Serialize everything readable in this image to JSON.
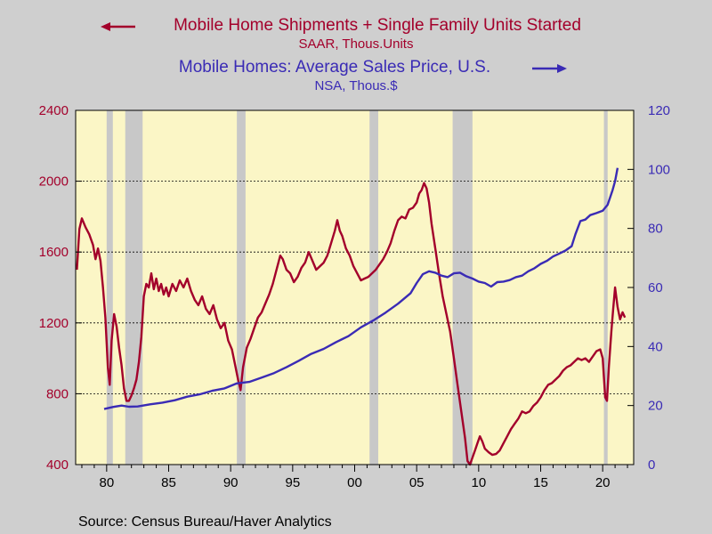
{
  "source": "Source:  Census Bureau/Haver Analytics",
  "chart_data": {
    "type": "line",
    "legend": [
      {
        "label": "Mobile Home Shipments + Single Family Units Started",
        "units": "SAAR, Thous.Units",
        "axis": "left",
        "color": "#a3002b",
        "arrow": "left"
      },
      {
        "label": "Mobile Homes: Average Sales Price, U.S.",
        "units": "NSA, Thous.$",
        "axis": "right",
        "color": "#3a2bb5",
        "arrow": "right"
      }
    ],
    "x_range": [
      1977.5,
      2022.5
    ],
    "x_ticks": [
      1980,
      1985,
      1990,
      1995,
      2000,
      2005,
      2010,
      2015,
      2020
    ],
    "x_tick_labels": [
      "80",
      "85",
      "90",
      "95",
      "00",
      "05",
      "10",
      "15",
      "20"
    ],
    "y_left": {
      "min": 400,
      "max": 2400,
      "ticks": [
        400,
        800,
        1200,
        1600,
        2000,
        2400
      ],
      "color": "#a3002b"
    },
    "y_right": {
      "min": 0,
      "max": 120,
      "ticks": [
        0,
        20,
        40,
        60,
        80,
        100,
        120
      ],
      "color": "#3a2bb5"
    },
    "dashed_gridlines_left": [
      800,
      1200,
      1600,
      2000
    ],
    "recessions": [
      [
        1980.0,
        1980.5
      ],
      [
        1981.5,
        1982.9
      ],
      [
        1990.5,
        1991.2
      ],
      [
        2001.2,
        2001.9
      ],
      [
        2007.9,
        2009.5
      ],
      [
        2020.1,
        2020.4
      ]
    ],
    "series": [
      {
        "name": "Mobile Home Shipments + Single Family Units Started",
        "axis": "left",
        "color": "#a3002b",
        "points": [
          [
            1977.6,
            1500
          ],
          [
            1977.8,
            1730
          ],
          [
            1978.0,
            1790
          ],
          [
            1978.3,
            1740
          ],
          [
            1978.6,
            1700
          ],
          [
            1978.9,
            1640
          ],
          [
            1979.1,
            1560
          ],
          [
            1979.3,
            1620
          ],
          [
            1979.5,
            1550
          ],
          [
            1979.7,
            1400
          ],
          [
            1979.9,
            1230
          ],
          [
            1980.1,
            950
          ],
          [
            1980.25,
            850
          ],
          [
            1980.4,
            1100
          ],
          [
            1980.6,
            1250
          ],
          [
            1980.8,
            1180
          ],
          [
            1981.0,
            1060
          ],
          [
            1981.2,
            960
          ],
          [
            1981.4,
            830
          ],
          [
            1981.6,
            760
          ],
          [
            1981.8,
            760
          ],
          [
            1982.0,
            790
          ],
          [
            1982.2,
            830
          ],
          [
            1982.4,
            880
          ],
          [
            1982.6,
            980
          ],
          [
            1982.8,
            1120
          ],
          [
            1983.0,
            1350
          ],
          [
            1983.2,
            1420
          ],
          [
            1983.4,
            1400
          ],
          [
            1983.6,
            1480
          ],
          [
            1983.8,
            1390
          ],
          [
            1984.0,
            1450
          ],
          [
            1984.2,
            1380
          ],
          [
            1984.4,
            1420
          ],
          [
            1984.6,
            1360
          ],
          [
            1984.8,
            1400
          ],
          [
            1985.0,
            1350
          ],
          [
            1985.3,
            1420
          ],
          [
            1985.6,
            1380
          ],
          [
            1985.9,
            1440
          ],
          [
            1986.2,
            1400
          ],
          [
            1986.5,
            1450
          ],
          [
            1986.8,
            1380
          ],
          [
            1987.1,
            1330
          ],
          [
            1987.4,
            1300
          ],
          [
            1987.7,
            1350
          ],
          [
            1988.0,
            1280
          ],
          [
            1988.3,
            1250
          ],
          [
            1988.6,
            1300
          ],
          [
            1988.9,
            1220
          ],
          [
            1989.2,
            1170
          ],
          [
            1989.5,
            1200
          ],
          [
            1989.8,
            1100
          ],
          [
            1990.1,
            1050
          ],
          [
            1990.4,
            950
          ],
          [
            1990.6,
            880
          ],
          [
            1990.8,
            820
          ],
          [
            1991.0,
            950
          ],
          [
            1991.3,
            1060
          ],
          [
            1991.6,
            1110
          ],
          [
            1991.9,
            1170
          ],
          [
            1992.2,
            1230
          ],
          [
            1992.5,
            1260
          ],
          [
            1992.8,
            1310
          ],
          [
            1993.1,
            1360
          ],
          [
            1993.4,
            1420
          ],
          [
            1993.7,
            1500
          ],
          [
            1994.0,
            1580
          ],
          [
            1994.2,
            1560
          ],
          [
            1994.5,
            1500
          ],
          [
            1994.8,
            1480
          ],
          [
            1995.1,
            1430
          ],
          [
            1995.4,
            1460
          ],
          [
            1995.7,
            1510
          ],
          [
            1996.0,
            1540
          ],
          [
            1996.3,
            1600
          ],
          [
            1996.6,
            1550
          ],
          [
            1996.9,
            1500
          ],
          [
            1997.2,
            1520
          ],
          [
            1997.5,
            1540
          ],
          [
            1997.8,
            1580
          ],
          [
            1998.1,
            1650
          ],
          [
            1998.4,
            1720
          ],
          [
            1998.6,
            1780
          ],
          [
            1998.8,
            1720
          ],
          [
            1999.0,
            1690
          ],
          [
            1999.3,
            1620
          ],
          [
            1999.6,
            1580
          ],
          [
            1999.9,
            1520
          ],
          [
            2000.2,
            1480
          ],
          [
            2000.5,
            1440
          ],
          [
            2000.8,
            1450
          ],
          [
            2001.1,
            1460
          ],
          [
            2001.4,
            1480
          ],
          [
            2001.7,
            1500
          ],
          [
            2002.0,
            1530
          ],
          [
            2002.3,
            1560
          ],
          [
            2002.6,
            1600
          ],
          [
            2002.9,
            1650
          ],
          [
            2003.2,
            1720
          ],
          [
            2003.5,
            1780
          ],
          [
            2003.8,
            1800
          ],
          [
            2004.1,
            1790
          ],
          [
            2004.4,
            1840
          ],
          [
            2004.7,
            1850
          ],
          [
            2005.0,
            1880
          ],
          [
            2005.2,
            1930
          ],
          [
            2005.4,
            1950
          ],
          [
            2005.6,
            1990
          ],
          [
            2005.8,
            1960
          ],
          [
            2006.0,
            1880
          ],
          [
            2006.2,
            1760
          ],
          [
            2006.5,
            1620
          ],
          [
            2006.8,
            1480
          ],
          [
            2007.1,
            1350
          ],
          [
            2007.4,
            1250
          ],
          [
            2007.7,
            1150
          ],
          [
            2008.0,
            1000
          ],
          [
            2008.3,
            850
          ],
          [
            2008.6,
            700
          ],
          [
            2008.9,
            550
          ],
          [
            2009.1,
            420
          ],
          [
            2009.3,
            400
          ],
          [
            2009.5,
            440
          ],
          [
            2009.7,
            480
          ],
          [
            2009.9,
            520
          ],
          [
            2010.1,
            560
          ],
          [
            2010.3,
            530
          ],
          [
            2010.5,
            490
          ],
          [
            2010.8,
            470
          ],
          [
            2011.1,
            455
          ],
          [
            2011.4,
            460
          ],
          [
            2011.7,
            480
          ],
          [
            2012.0,
            520
          ],
          [
            2012.3,
            560
          ],
          [
            2012.6,
            600
          ],
          [
            2012.9,
            630
          ],
          [
            2013.2,
            660
          ],
          [
            2013.5,
            700
          ],
          [
            2013.8,
            690
          ],
          [
            2014.1,
            700
          ],
          [
            2014.4,
            730
          ],
          [
            2014.7,
            750
          ],
          [
            2015.0,
            780
          ],
          [
            2015.3,
            820
          ],
          [
            2015.6,
            850
          ],
          [
            2015.9,
            860
          ],
          [
            2016.2,
            880
          ],
          [
            2016.5,
            900
          ],
          [
            2016.8,
            930
          ],
          [
            2017.1,
            950
          ],
          [
            2017.4,
            960
          ],
          [
            2017.7,
            980
          ],
          [
            2018.0,
            1000
          ],
          [
            2018.3,
            990
          ],
          [
            2018.6,
            1000
          ],
          [
            2018.9,
            980
          ],
          [
            2019.2,
            1010
          ],
          [
            2019.5,
            1040
          ],
          [
            2019.8,
            1050
          ],
          [
            2020.0,
            1000
          ],
          [
            2020.2,
            780
          ],
          [
            2020.35,
            760
          ],
          [
            2020.5,
            950
          ],
          [
            2020.7,
            1150
          ],
          [
            2020.85,
            1280
          ],
          [
            2021.0,
            1400
          ],
          [
            2021.2,
            1290
          ],
          [
            2021.4,
            1220
          ],
          [
            2021.6,
            1260
          ],
          [
            2021.8,
            1230
          ]
        ]
      },
      {
        "name": "Mobile Homes: Average Sales Price, U.S.",
        "axis": "right",
        "color": "#3a2bb5",
        "points": [
          [
            1979.8,
            18.8
          ],
          [
            1980.5,
            19.5
          ],
          [
            1981.2,
            20.0
          ],
          [
            1981.8,
            19.6
          ],
          [
            1982.5,
            19.7
          ],
          [
            1983.5,
            20.4
          ],
          [
            1984.5,
            21.0
          ],
          [
            1985.5,
            21.8
          ],
          [
            1986.5,
            23.0
          ],
          [
            1987.5,
            23.8
          ],
          [
            1988.5,
            25.0
          ],
          [
            1989.5,
            25.8
          ],
          [
            1990.5,
            27.5
          ],
          [
            1991.5,
            28.0
          ],
          [
            1992.5,
            29.5
          ],
          [
            1993.5,
            31.0
          ],
          [
            1994.5,
            33.0
          ],
          [
            1995.5,
            35.2
          ],
          [
            1996.5,
            37.5
          ],
          [
            1997.5,
            39.2
          ],
          [
            1998.5,
            41.5
          ],
          [
            1999.5,
            43.5
          ],
          [
            2000.5,
            46.5
          ],
          [
            2001.5,
            48.8
          ],
          [
            2002.5,
            51.5
          ],
          [
            2003.5,
            54.5
          ],
          [
            2004.5,
            58.0
          ],
          [
            2005.0,
            61.5
          ],
          [
            2005.5,
            64.5
          ],
          [
            2006.0,
            65.5
          ],
          [
            2006.5,
            65.0
          ],
          [
            2007.0,
            64.0
          ],
          [
            2007.5,
            63.5
          ],
          [
            2008.0,
            64.8
          ],
          [
            2008.5,
            65.0
          ],
          [
            2009.0,
            63.8
          ],
          [
            2009.5,
            63.0
          ],
          [
            2010.0,
            62.0
          ],
          [
            2010.5,
            61.5
          ],
          [
            2011.0,
            60.3
          ],
          [
            2011.5,
            61.8
          ],
          [
            2012.0,
            62.0
          ],
          [
            2012.5,
            62.5
          ],
          [
            2013.0,
            63.5
          ],
          [
            2013.5,
            64.0
          ],
          [
            2014.0,
            65.5
          ],
          [
            2014.5,
            66.5
          ],
          [
            2015.0,
            68.0
          ],
          [
            2015.5,
            69.0
          ],
          [
            2016.0,
            70.5
          ],
          [
            2016.5,
            71.5
          ],
          [
            2017.0,
            72.5
          ],
          [
            2017.5,
            74.0
          ],
          [
            2017.8,
            78.0
          ],
          [
            2018.2,
            82.5
          ],
          [
            2018.6,
            83.0
          ],
          [
            2019.0,
            84.5
          ],
          [
            2019.5,
            85.2
          ],
          [
            2020.0,
            86.0
          ],
          [
            2020.4,
            88.0
          ],
          [
            2020.8,
            93.0
          ],
          [
            2021.0,
            96.0
          ],
          [
            2021.2,
            100.5
          ]
        ]
      }
    ]
  }
}
